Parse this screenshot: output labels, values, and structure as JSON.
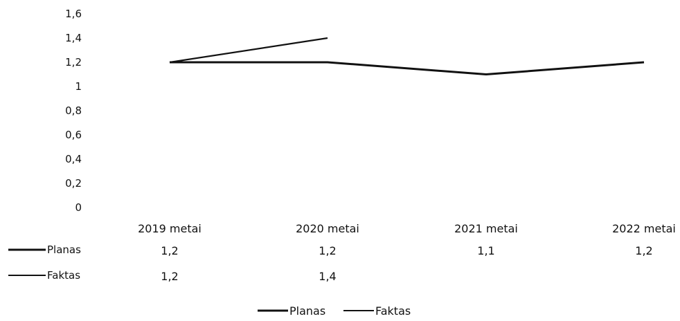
{
  "chart_data": {
    "type": "line",
    "categories": [
      "2019 metai",
      "2020 metai",
      "2021 metai",
      "2022 metai"
    ],
    "series": [
      {
        "name": "Planas",
        "values": [
          1.2,
          1.2,
          1.1,
          1.2
        ],
        "labels": [
          "1,2",
          "1,2",
          "1,1",
          "1,2"
        ]
      },
      {
        "name": "Faktas",
        "values": [
          1.2,
          1.4,
          null,
          null
        ],
        "labels": [
          "1,2",
          "1,4",
          "",
          ""
        ]
      }
    ],
    "yticks": [
      "0",
      "0,2",
      "0,4",
      "0,6",
      "0,8",
      "1",
      "1,2",
      "1,4",
      "1,6"
    ],
    "ylim": [
      0,
      1.6
    ],
    "grid": false,
    "legend": "bottom",
    "data_table": true,
    "colors": {
      "line": "#111111",
      "text": "#111111"
    }
  }
}
